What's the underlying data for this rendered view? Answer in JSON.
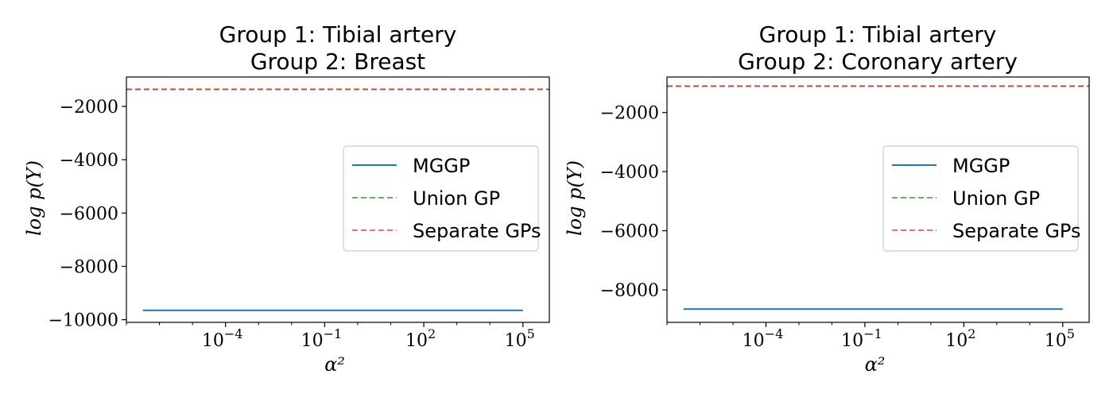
{
  "colors": {
    "mggp": "#1f77b4",
    "union_gp": "#2ca02c",
    "separate_gps": "#d62728",
    "separate_gps_legend": "#ff6b6b",
    "union_gp_legend": "#5cb85c"
  },
  "chart_data": [
    {
      "type": "line",
      "title_lines": [
        "Group 1: Tibial artery",
        "Group 2: Breast"
      ],
      "xlabel": "α²",
      "ylabel": "log p(Y)",
      "xscale": "log",
      "xlim_log10": [
        -7,
        5.8
      ],
      "ylim": [
        -10100,
        -900
      ],
      "xticks": [
        {
          "exp": -4,
          "base": "10",
          "sup": "−4"
        },
        {
          "exp": -1,
          "base": "10",
          "sup": "−1"
        },
        {
          "exp": 2,
          "base": "10",
          "sup": "2"
        },
        {
          "exp": 5,
          "base": "10",
          "sup": "5"
        }
      ],
      "yticks": [
        {
          "value": -2000,
          "label": "−2000"
        },
        {
          "value": -4000,
          "label": "−4000"
        },
        {
          "value": -6000,
          "label": "−6000"
        },
        {
          "value": -8000,
          "label": "−8000"
        },
        {
          "value": -10000,
          "label": "−10000"
        }
      ],
      "legend": {
        "position": "center-right",
        "entries": [
          "MGGP",
          "Union GP",
          "Separate GPs"
        ]
      },
      "series": [
        {
          "name": "MGGP",
          "style": "solid",
          "x_log10": [
            -6.5,
            5
          ],
          "y": [
            -9650,
            -9650
          ]
        },
        {
          "name": "Union GP",
          "style": "dashed",
          "y_const": -1360
        },
        {
          "name": "Separate GPs",
          "style": "dashed",
          "y_const": -1360
        }
      ]
    },
    {
      "type": "line",
      "title_lines": [
        "Group 1: Tibial artery",
        "Group 2: Coronary artery"
      ],
      "xlabel": "α²",
      "ylabel": "log p(Y)",
      "xscale": "log",
      "xlim_log10": [
        -7,
        5.8
      ],
      "ylim": [
        -9100,
        -800
      ],
      "xticks": [
        {
          "exp": -4,
          "base": "10",
          "sup": "−4"
        },
        {
          "exp": -1,
          "base": "10",
          "sup": "−1"
        },
        {
          "exp": 2,
          "base": "10",
          "sup": "2"
        },
        {
          "exp": 5,
          "base": "10",
          "sup": "5"
        }
      ],
      "yticks": [
        {
          "value": -2000,
          "label": "−2000"
        },
        {
          "value": -4000,
          "label": "−4000"
        },
        {
          "value": -6000,
          "label": "−6000"
        },
        {
          "value": -8000,
          "label": "−8000"
        }
      ],
      "legend": {
        "position": "center-right",
        "entries": [
          "MGGP",
          "Union GP",
          "Separate GPs"
        ]
      },
      "series": [
        {
          "name": "MGGP",
          "style": "solid",
          "x_log10": [
            -6.5,
            5
          ],
          "y": [
            -8650,
            -8650
          ]
        },
        {
          "name": "Union GP",
          "style": "dashed",
          "y_const": -1110
        },
        {
          "name": "Separate GPs",
          "style": "dashed",
          "y_const": -1110
        }
      ]
    }
  ]
}
